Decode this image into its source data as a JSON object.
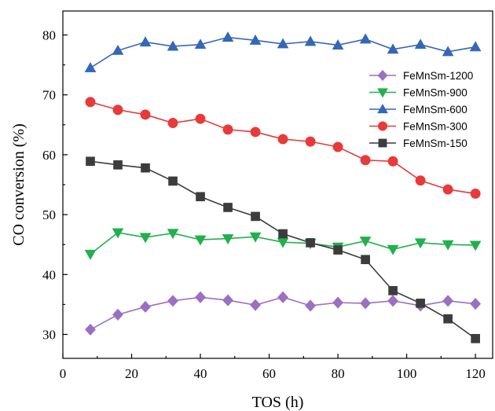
{
  "chart_data": {
    "type": "line",
    "title": "",
    "xlabel": "TOS (h)",
    "ylabel": "CO conversion (%)",
    "xlim": [
      0,
      125
    ],
    "ylim": [
      26,
      84
    ],
    "xticks": [
      0,
      20,
      40,
      60,
      80,
      100,
      120
    ],
    "yticks": [
      30,
      40,
      50,
      60,
      70,
      80
    ],
    "grid": false,
    "legend_position": "right",
    "x": [
      8,
      16,
      24,
      32,
      40,
      48,
      56,
      64,
      72,
      80,
      88,
      96,
      104,
      112,
      120
    ],
    "series": [
      {
        "name": "FeMnSm-1200",
        "marker": "diamond",
        "color": "#9b6fc1",
        "values": [
          30.8,
          33.3,
          34.6,
          35.6,
          36.2,
          35.7,
          34.9,
          36.2,
          34.8,
          35.3,
          35.2,
          35.6,
          34.8,
          35.6,
          35.1
        ]
      },
      {
        "name": "FeMnSm-900",
        "marker": "triangle-down",
        "color": "#21b04c",
        "values": [
          43.4,
          47.0,
          46.2,
          46.9,
          45.8,
          46.0,
          46.3,
          45.4,
          45.2,
          44.6,
          45.6,
          44.2,
          45.3,
          45.0,
          44.9
        ]
      },
      {
        "name": "FeMnSm-600",
        "marker": "triangle-up",
        "color": "#3567b8",
        "values": [
          74.5,
          77.4,
          78.8,
          78.1,
          78.4,
          79.6,
          79.1,
          78.5,
          78.9,
          78.3,
          79.3,
          77.6,
          78.4,
          77.2,
          78.0
        ]
      },
      {
        "name": "FeMnSm-300",
        "marker": "circle",
        "color": "#e83a3a",
        "values": [
          68.8,
          67.5,
          66.7,
          65.3,
          66.0,
          64.2,
          63.8,
          62.6,
          62.2,
          61.3,
          59.1,
          58.9,
          55.7,
          54.2,
          53.5
        ]
      },
      {
        "name": "FeMnSm-150",
        "marker": "square",
        "color": "#3c3c3c",
        "values": [
          58.9,
          58.3,
          57.8,
          55.6,
          53.0,
          51.2,
          49.7,
          46.8,
          45.3,
          44.1,
          42.5,
          37.3,
          35.2,
          32.6,
          29.3
        ]
      }
    ]
  }
}
